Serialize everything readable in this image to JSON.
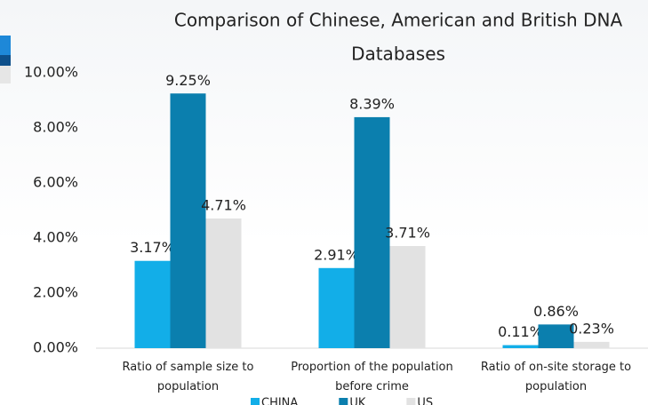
{
  "chart_data": {
    "type": "bar",
    "title": "Comparison of Chinese, American and British DNA",
    "title_line2": "Databases",
    "categories": [
      "Ratio of sample size to population",
      "Proportion of the population before crime",
      "Ratio of on-site storage to population"
    ],
    "series": [
      {
        "name": "CHINA",
        "color": "#12aee8",
        "values": [
          3.17,
          2.91,
          0.11
        ],
        "value_labels": [
          "3.17%",
          "2.91%",
          "0.11%"
        ]
      },
      {
        "name": "UK",
        "color": "#0b7fae",
        "values": [
          9.25,
          8.39,
          0.86
        ],
        "value_labels": [
          "9.25%",
          "8.39%",
          "0.86%"
        ]
      },
      {
        "name": "US",
        "color": "#e2e2e2",
        "values": [
          4.71,
          3.71,
          0.23
        ],
        "value_labels": [
          "4.71%",
          "3.71%",
          "0.23%"
        ]
      }
    ],
    "ylim": [
      0,
      10
    ],
    "yticks": [
      {
        "value": 0,
        "label": "0.00%"
      },
      {
        "value": 2,
        "label": "2.00%"
      },
      {
        "value": 4,
        "label": "4.00%"
      },
      {
        "value": 6,
        "label": "6.00%"
      },
      {
        "value": 8,
        "label": "8.00%"
      },
      {
        "value": 10,
        "label": "10.00%"
      }
    ]
  }
}
